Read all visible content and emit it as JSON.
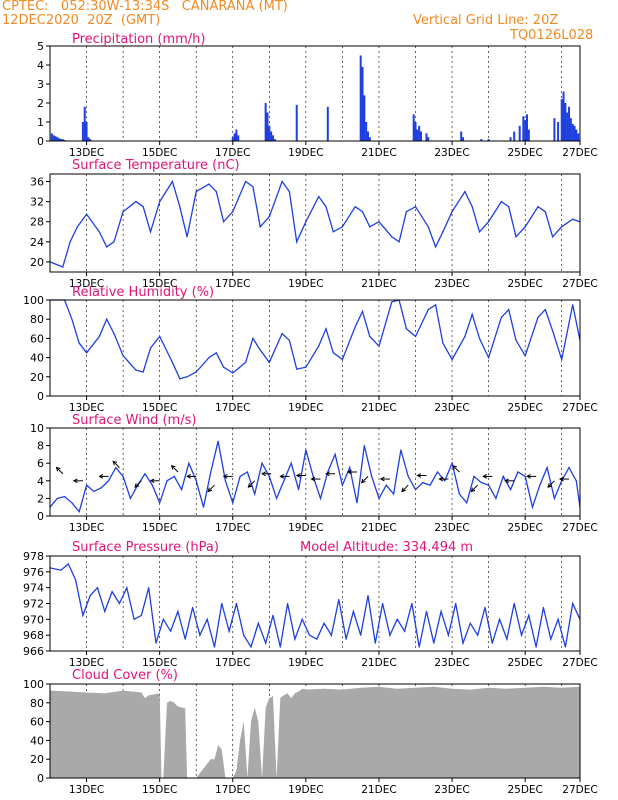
{
  "header": {
    "line1": "CPTEC:   052:30W-13:34S   CANARANA (MT)",
    "line2": "12DEC2020  20Z  (GMT)",
    "grid_note": "Vertical Grid Line: 20Z",
    "code": "TQ0126L028"
  },
  "colors": {
    "header": "#f08a24",
    "title": "#e0157a",
    "series": "#1f3fe0",
    "cloud": "#a9a9a9",
    "frame": "#000000"
  },
  "chart_data": [
    {
      "id": "precip",
      "type": "bar",
      "title": "Precipitation  (mm/h)",
      "ylim": [
        0,
        5
      ],
      "yticks": [
        0,
        1,
        2,
        3,
        4,
        5
      ],
      "xlim": [
        0,
        14.5
      ],
      "x_tick_labels": [
        "13DEC",
        "15DEC",
        "17DEC",
        "19DEC",
        "21DEC",
        "23DEC",
        "25DEC",
        "27DEC"
      ],
      "x_tick_days": [
        1,
        3,
        5,
        7,
        9,
        11,
        13,
        14.5
      ],
      "x": [
        0.05,
        0.1,
        0.15,
        0.2,
        0.25,
        0.3,
        0.35,
        0.4,
        0.9,
        0.95,
        1.0,
        1.05,
        1.1,
        5.0,
        5.05,
        5.1,
        5.15,
        5.9,
        5.95,
        6.0,
        6.05,
        6.1,
        6.15,
        6.75,
        7.6,
        8.5,
        8.55,
        8.6,
        8.65,
        8.7,
        8.75,
        9.95,
        10.0,
        10.05,
        10.1,
        10.15,
        10.3,
        10.35,
        11.25,
        11.3,
        11.8,
        12.0,
        12.6,
        12.7,
        12.85,
        12.95,
        13.0,
        13.05,
        13.1,
        13.8,
        13.9,
        14.0,
        14.05,
        14.1,
        14.15,
        14.2,
        14.25,
        14.3,
        14.35,
        14.4,
        14.45
      ],
      "values": [
        0.4,
        0.3,
        0.25,
        0.2,
        0.15,
        0.1,
        0.1,
        0.05,
        1.0,
        1.8,
        1.0,
        0.2,
        0.1,
        0.2,
        0.4,
        0.6,
        0.3,
        2.0,
        1.5,
        0.8,
        0.5,
        0.3,
        0.1,
        1.9,
        1.8,
        4.5,
        3.9,
        2.4,
        1.0,
        0.5,
        0.2,
        1.4,
        1.0,
        0.6,
        0.8,
        0.5,
        0.4,
        0.2,
        0.5,
        0.2,
        0.1,
        0.1,
        0.2,
        0.5,
        0.8,
        1.3,
        1.1,
        1.4,
        0.6,
        1.2,
        1.0,
        2.2,
        2.6,
        2.0,
        1.5,
        1.8,
        1.2,
        0.9,
        0.8,
        0.6,
        0.4
      ]
    },
    {
      "id": "temp",
      "type": "line",
      "title": "Surface Temperature (nC)",
      "ylim": [
        18,
        37.5
      ],
      "yticks": [
        20,
        24,
        28,
        32,
        36
      ],
      "xlim": [
        0,
        14.5
      ],
      "x_tick_labels": [
        "13DEC",
        "15DEC",
        "17DEC",
        "19DEC",
        "21DEC",
        "23DEC",
        "25DEC",
        "27DEC"
      ],
      "x_tick_days": [
        1,
        3,
        5,
        7,
        9,
        11,
        13,
        14.5
      ],
      "x": [
        0,
        0.35,
        0.55,
        0.75,
        1.0,
        1.35,
        1.55,
        1.75,
        2.0,
        2.35,
        2.55,
        2.75,
        3.0,
        3.35,
        3.55,
        3.75,
        4.0,
        4.35,
        4.55,
        4.75,
        5.0,
        5.35,
        5.55,
        5.75,
        6.0,
        6.35,
        6.55,
        6.75,
        7.0,
        7.35,
        7.55,
        7.75,
        8.0,
        8.35,
        8.55,
        8.75,
        9.0,
        9.35,
        9.55,
        9.75,
        10.0,
        10.35,
        10.55,
        10.75,
        11.0,
        11.35,
        11.55,
        11.75,
        12.0,
        12.35,
        12.55,
        12.75,
        13.0,
        13.35,
        13.55,
        13.75,
        14.0,
        14.3,
        14.5
      ],
      "values": [
        20,
        19,
        24,
        27,
        29.5,
        26,
        23,
        24,
        30,
        32,
        31,
        26,
        32,
        36,
        31,
        25,
        34,
        35.5,
        34,
        28,
        30,
        36,
        35,
        27,
        29,
        36,
        34,
        24,
        28,
        33,
        31,
        26,
        27,
        31,
        30,
        27,
        28,
        25,
        24,
        30,
        31,
        27,
        23,
        26,
        30,
        34,
        31,
        26,
        28,
        32,
        31,
        25,
        27,
        31,
        30,
        25,
        27,
        28.5,
        28
      ]
    },
    {
      "id": "rh",
      "type": "line",
      "title": "Relative Humidity  (%)",
      "ylim": [
        0,
        100
      ],
      "yticks": [
        0,
        20,
        40,
        60,
        80,
        100
      ],
      "xlim": [
        0,
        14.5
      ],
      "x_tick_labels": [
        "13DEC",
        "15DEC",
        "17DEC",
        "19DEC",
        "21DEC",
        "23DEC",
        "25DEC",
        "27DEC"
      ],
      "x_tick_days": [
        1,
        3,
        5,
        7,
        9,
        11,
        13,
        14.5
      ],
      "x": [
        0,
        0.4,
        0.6,
        0.8,
        1.0,
        1.35,
        1.55,
        1.75,
        2.0,
        2.35,
        2.55,
        2.75,
        3.0,
        3.35,
        3.55,
        3.75,
        4.0,
        4.35,
        4.55,
        4.75,
        5.0,
        5.35,
        5.55,
        5.75,
        6.0,
        6.35,
        6.55,
        6.75,
        7.0,
        7.35,
        7.55,
        7.75,
        8.0,
        8.35,
        8.55,
        8.75,
        9.0,
        9.35,
        9.55,
        9.75,
        10.0,
        10.35,
        10.55,
        10.75,
        11.0,
        11.35,
        11.55,
        11.75,
        12.0,
        12.35,
        12.55,
        12.75,
        13.0,
        13.35,
        13.55,
        13.75,
        14.0,
        14.3,
        14.5
      ],
      "values": [
        100,
        100,
        80,
        55,
        45,
        62,
        80,
        65,
        42,
        27,
        25,
        50,
        62,
        35,
        18,
        20,
        25,
        40,
        45,
        30,
        24,
        35,
        60,
        48,
        35,
        65,
        58,
        28,
        30,
        52,
        70,
        45,
        38,
        72,
        88,
        62,
        52,
        98,
        100,
        70,
        62,
        90,
        95,
        55,
        38,
        62,
        85,
        60,
        40,
        82,
        90,
        58,
        42,
        82,
        90,
        68,
        38,
        95,
        58
      ]
    },
    {
      "id": "wind",
      "type": "line",
      "title": "Surface Wind  (m/s)",
      "ylim": [
        0,
        10
      ],
      "yticks": [
        0,
        2,
        4,
        6,
        8,
        10
      ],
      "xlim": [
        0,
        14.5
      ],
      "x_tick_labels": [
        "13DEC",
        "15DEC",
        "17DEC",
        "19DEC",
        "21DEC",
        "23DEC",
        "25DEC",
        "27DEC"
      ],
      "x_tick_days": [
        1,
        3,
        5,
        7,
        9,
        11,
        13,
        14.5
      ],
      "x": [
        0,
        0.2,
        0.4,
        0.6,
        0.8,
        1.0,
        1.2,
        1.4,
        1.6,
        1.8,
        2.0,
        2.2,
        2.4,
        2.6,
        2.8,
        3.0,
        3.2,
        3.4,
        3.6,
        3.8,
        4.0,
        4.2,
        4.4,
        4.6,
        4.8,
        5.0,
        5.2,
        5.4,
        5.6,
        5.8,
        6.0,
        6.2,
        6.4,
        6.6,
        6.8,
        7.0,
        7.2,
        7.4,
        7.6,
        7.8,
        8.0,
        8.2,
        8.4,
        8.6,
        8.8,
        9.0,
        9.2,
        9.4,
        9.6,
        9.8,
        10.0,
        10.2,
        10.4,
        10.6,
        10.8,
        11.0,
        11.2,
        11.4,
        11.6,
        11.8,
        12.0,
        12.2,
        12.4,
        12.6,
        12.8,
        13.0,
        13.2,
        13.4,
        13.6,
        13.8,
        14.0,
        14.2,
        14.4,
        14.5
      ],
      "values": [
        1.0,
        2.0,
        2.2,
        1.5,
        0.5,
        3.5,
        2.8,
        3.2,
        4.0,
        5.5,
        4.5,
        2.0,
        3.5,
        4.8,
        3.5,
        1.5,
        4.0,
        4.5,
        3.0,
        6.0,
        4.0,
        1.0,
        5.0,
        8.5,
        4.0,
        1.5,
        4.5,
        5.0,
        2.5,
        6.0,
        4.5,
        2.0,
        4.0,
        6.0,
        3.0,
        7.5,
        4.5,
        2.0,
        5.0,
        7.0,
        3.5,
        5.5,
        1.5,
        8.0,
        4.5,
        2.0,
        3.5,
        2.5,
        7.5,
        4.5,
        3.0,
        3.8,
        3.5,
        5.0,
        4.0,
        6.0,
        2.5,
        1.5,
        4.5,
        3.8,
        3.5,
        2.0,
        4.5,
        3.0,
        5.0,
        4.5,
        1.0,
        3.5,
        5.5,
        2.0,
        4.0,
        5.5,
        4.0,
        1.0
      ]
    },
    {
      "id": "pressure",
      "type": "line",
      "title": "Surface Pressure (hPa)",
      "annotation": "Model Altitude: 334.494  m",
      "ylim": [
        966,
        978
      ],
      "yticks": [
        966,
        968,
        970,
        972,
        974,
        976,
        978
      ],
      "xlim": [
        0,
        14.5
      ],
      "x_tick_labels": [
        "13DEC",
        "15DEC",
        "17DEC",
        "19DEC",
        "21DEC",
        "23DEC",
        "25DEC",
        "27DEC"
      ],
      "x_tick_days": [
        1,
        3,
        5,
        7,
        9,
        11,
        13,
        14.5
      ],
      "x": [
        0,
        0.3,
        0.5,
        0.7,
        0.9,
        1.1,
        1.3,
        1.5,
        1.7,
        1.9,
        2.1,
        2.3,
        2.5,
        2.7,
        2.9,
        3.1,
        3.3,
        3.5,
        3.7,
        3.9,
        4.1,
        4.3,
        4.5,
        4.7,
        4.9,
        5.1,
        5.3,
        5.5,
        5.7,
        5.9,
        6.1,
        6.3,
        6.5,
        6.7,
        6.9,
        7.1,
        7.3,
        7.5,
        7.7,
        7.9,
        8.1,
        8.3,
        8.5,
        8.7,
        8.9,
        9.1,
        9.3,
        9.5,
        9.7,
        9.9,
        10.1,
        10.3,
        10.5,
        10.7,
        10.9,
        11.1,
        11.3,
        11.5,
        11.7,
        11.9,
        12.1,
        12.3,
        12.5,
        12.7,
        12.9,
        13.1,
        13.3,
        13.5,
        13.7,
        13.9,
        14.1,
        14.3,
        14.5
      ],
      "values": [
        976.5,
        976.2,
        977,
        975,
        970.5,
        973,
        974,
        971,
        973.5,
        972,
        974,
        970,
        970.5,
        974,
        967,
        970,
        968.5,
        971,
        967.5,
        971.5,
        968,
        970,
        966.5,
        972,
        968.5,
        972,
        968,
        966.5,
        969.5,
        967,
        970.5,
        966.5,
        972,
        967.5,
        970,
        968,
        967.5,
        969.5,
        968,
        972.5,
        967.5,
        971,
        968,
        973,
        967,
        972,
        968,
        970,
        968.5,
        972,
        966.5,
        971,
        967,
        971,
        968,
        972,
        967,
        969.5,
        968,
        971.5,
        967,
        970,
        967.5,
        972,
        968,
        970.5,
        966.5,
        971.5,
        967.5,
        970,
        966.5,
        972,
        970
      ]
    },
    {
      "id": "cloud",
      "type": "area",
      "title": "Cloud Cover  (%)",
      "ylim": [
        0,
        100
      ],
      "yticks": [
        0,
        20,
        40,
        60,
        80,
        100
      ],
      "xlim": [
        0,
        14.5
      ],
      "x_tick_labels": [
        "13DEC",
        "15DEC",
        "17DEC",
        "19DEC",
        "21DEC",
        "23DEC",
        "25DEC",
        "27DEC"
      ],
      "x_tick_days": [
        1,
        3,
        5,
        7,
        9,
        11,
        13,
        14.5
      ],
      "x": [
        0,
        0.5,
        1.0,
        1.5,
        2.0,
        2.5,
        2.6,
        2.7,
        3.0,
        3.05,
        3.1,
        3.2,
        3.3,
        3.4,
        3.5,
        3.6,
        3.7,
        3.75,
        3.8,
        3.9,
        4.0,
        4.2,
        4.3,
        4.4,
        4.5,
        4.6,
        4.7,
        4.8,
        4.9,
        5.0,
        5.1,
        5.2,
        5.3,
        5.4,
        5.5,
        5.6,
        5.7,
        5.8,
        5.9,
        6.0,
        6.1,
        6.2,
        6.3,
        6.4,
        6.5,
        6.6,
        6.7,
        6.8,
        6.9,
        7.0,
        7.5,
        8.0,
        8.5,
        9.0,
        9.5,
        10.0,
        10.5,
        11.0,
        11.5,
        12.0,
        12.5,
        13.0,
        13.5,
        14.0,
        14.5
      ],
      "values": [
        93,
        92,
        91,
        90,
        93,
        91,
        85,
        88,
        90,
        0,
        0,
        80,
        82,
        80,
        76,
        75,
        74,
        0,
        0,
        0,
        0,
        10,
        15,
        20,
        20,
        35,
        30,
        0,
        0,
        0,
        8,
        40,
        60,
        0,
        60,
        75,
        60,
        0,
        75,
        85,
        87,
        0,
        85,
        88,
        90,
        85,
        90,
        92,
        95,
        94,
        95,
        94,
        96,
        97,
        95,
        96,
        97,
        95,
        94,
        96,
        95,
        96,
        97,
        96,
        97
      ]
    }
  ],
  "wind_arrows": [
    {
      "x": 0.35,
      "y": 4.8,
      "dir": "nw"
    },
    {
      "x": 0.9,
      "y": 4.0,
      "dir": "w"
    },
    {
      "x": 1.6,
      "y": 4.5,
      "dir": "w"
    },
    {
      "x": 1.9,
      "y": 5.5,
      "dir": "nw"
    },
    {
      "x": 2.5,
      "y": 4.0,
      "dir": "sw"
    },
    {
      "x": 3.0,
      "y": 4.0,
      "dir": "w"
    },
    {
      "x": 3.5,
      "y": 5.0,
      "dir": "nw"
    },
    {
      "x": 4.0,
      "y": 4.5,
      "dir": "w"
    },
    {
      "x": 4.5,
      "y": 3.5,
      "dir": "sw"
    },
    {
      "x": 5.0,
      "y": 4.5,
      "dir": "w"
    },
    {
      "x": 5.6,
      "y": 4.0,
      "dir": "sw"
    },
    {
      "x": 6.05,
      "y": 4.8,
      "dir": "w"
    },
    {
      "x": 6.55,
      "y": 4.5,
      "dir": "w"
    },
    {
      "x": 7.0,
      "y": 4.6,
      "dir": "w"
    },
    {
      "x": 7.4,
      "y": 4.2,
      "dir": "w"
    },
    {
      "x": 7.8,
      "y": 4.8,
      "dir": "w"
    },
    {
      "x": 8.4,
      "y": 5.0,
      "dir": "w"
    },
    {
      "x": 8.7,
      "y": 4.5,
      "dir": "sw"
    },
    {
      "x": 9.3,
      "y": 4.2,
      "dir": "w"
    },
    {
      "x": 9.8,
      "y": 3.5,
      "dir": "sw"
    },
    {
      "x": 10.3,
      "y": 4.6,
      "dir": "w"
    },
    {
      "x": 10.9,
      "y": 4.2,
      "dir": "w"
    },
    {
      "x": 11.2,
      "y": 5.0,
      "dir": "nw"
    },
    {
      "x": 11.7,
      "y": 3.5,
      "dir": "sw"
    },
    {
      "x": 12.1,
      "y": 4.5,
      "dir": "w"
    },
    {
      "x": 12.7,
      "y": 4.0,
      "dir": "w"
    },
    {
      "x": 13.3,
      "y": 4.5,
      "dir": "w"
    },
    {
      "x": 13.8,
      "y": 4.0,
      "dir": "sw"
    },
    {
      "x": 14.2,
      "y": 4.2,
      "dir": "w"
    }
  ]
}
